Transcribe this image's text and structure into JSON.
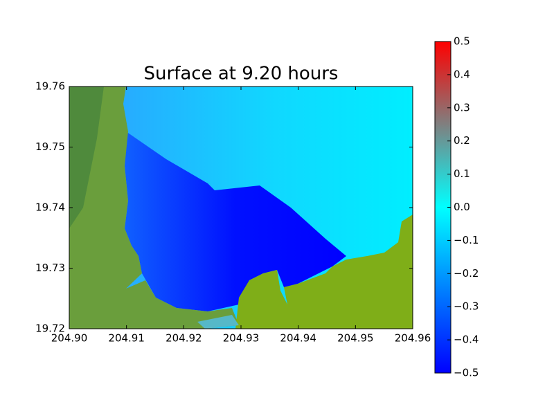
{
  "chart_data": {
    "type": "heatmap",
    "title": "Surface at 9.20 hours",
    "xlim": [
      204.9,
      204.96
    ],
    "xticks": [
      {
        "value": 204.9,
        "label": "204.90"
      },
      204.91,
      204.92,
      204.93,
      204.94,
      204.95,
      204.96
    ],
    "ylim": [
      19.72,
      19.76
    ],
    "yticks": [
      19.72,
      19.73,
      19.74,
      19.75,
      19.76
    ],
    "clim": [
      -0.5,
      0.5
    ],
    "cticks": [
      {
        "value": -0.5,
        "label": "−0.5"
      },
      {
        "value": -0.4,
        "label": "−0.4"
      },
      {
        "value": -0.3,
        "label": "−0.3"
      },
      {
        "value": -0.2,
        "label": "−0.2"
      },
      {
        "value": -0.1,
        "label": "−0.1"
      },
      {
        "value": 0,
        "label": "0.0"
      },
      0.1,
      0.2,
      0.3,
      0.4,
      0.5
    ],
    "colormap": [
      "#0000ff",
      "#00ffff",
      "#ff0000"
    ]
  }
}
